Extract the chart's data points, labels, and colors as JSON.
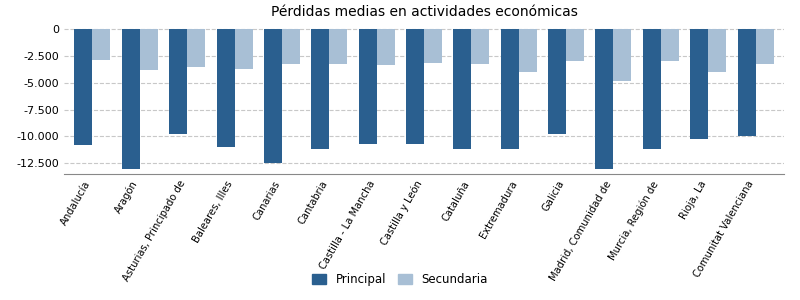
{
  "title": "Pérdidas medias en actividades económicas",
  "categories": [
    "Andalucía",
    "Aragón",
    "Asturias, Principado de",
    "Baleares, Illes",
    "Canarias",
    "Cantabria",
    "Castilla - La Mancha",
    "Castilla y León",
    "Cataluña",
    "Extremadura",
    "Galicia",
    "Madrid, Comunidad de",
    "Murcia, Región de",
    "Rioja, La",
    "Comunitat Valenciana"
  ],
  "principal": [
    -10800,
    -13000,
    -9800,
    -11000,
    -12500,
    -11200,
    -10700,
    -10700,
    -11200,
    -11200,
    -9800,
    -13000,
    -11200,
    -10200,
    -10000
  ],
  "secundaria": [
    -2900,
    -3800,
    -3500,
    -3700,
    -3200,
    -3200,
    -3300,
    -3100,
    -3200,
    -4000,
    -3000,
    -4800,
    -3000,
    -4000,
    -3200
  ],
  "color_principal": "#2a5f8f",
  "color_secundaria": "#a8bfd5",
  "ylim": [
    -13500,
    500
  ],
  "yticks": [
    0,
    -2500,
    -5000,
    -7500,
    -10000,
    -12500
  ],
  "background_color": "#ffffff",
  "grid_color": "#c8c8c8",
  "legend_labels": [
    "Principal",
    "Secundaria"
  ],
  "bar_width": 0.38
}
